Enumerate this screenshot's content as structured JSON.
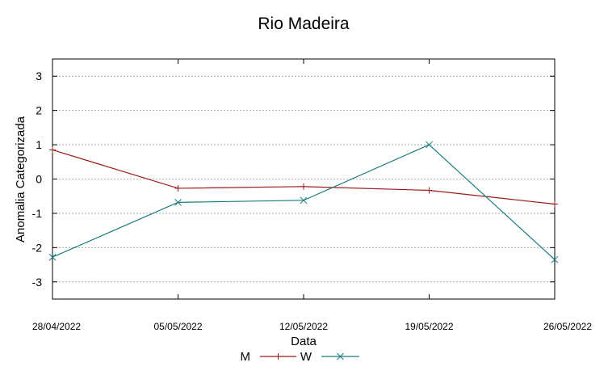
{
  "chart_data": {
    "type": "line",
    "title": "Rio Madeira",
    "xlabel": "Data",
    "ylabel": "Anomalia Categorizada",
    "categories": [
      "28/04/2022",
      "05/05/2022",
      "12/05/2022",
      "19/05/2022",
      "26/05/2022"
    ],
    "ylim": [
      -3.5,
      3.5
    ],
    "yticks": [
      "3",
      "2",
      "1",
      "0",
      "-1",
      "-2",
      "-3"
    ],
    "ytick_values": [
      3,
      2,
      1,
      0,
      -1,
      -2,
      -3
    ],
    "grid": true,
    "legend_position": "bottom",
    "series": [
      {
        "name": "M",
        "color": "#9b1b1b",
        "marker": "plus",
        "values": [
          0.85,
          -0.27,
          -0.22,
          -0.33,
          -0.73
        ]
      },
      {
        "name": "W",
        "color": "#1a7c80",
        "marker": "cross",
        "values": [
          -2.28,
          -0.68,
          -0.62,
          1.0,
          -2.35
        ]
      }
    ]
  }
}
